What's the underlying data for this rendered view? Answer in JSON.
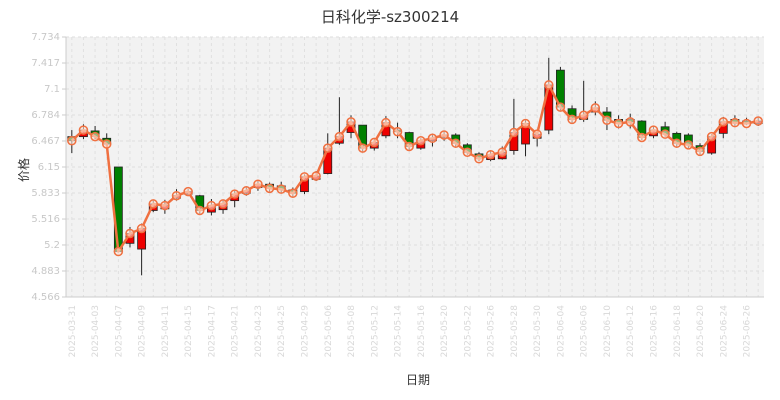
{
  "chart_data": {
    "type": "candlestick",
    "title": "日科化学-sz300214",
    "xlabel": "日期",
    "ylabel": "价格",
    "ylim": [
      4.566,
      7.734
    ],
    "yticks": [
      "4.566",
      "4.883",
      "5.2",
      "5.516",
      "5.833",
      "6.15",
      "6.467",
      "6.784",
      "7.1",
      "7.417",
      "7.734"
    ],
    "grid": true,
    "colors": {
      "up": "#ee0000",
      "down": "#008000",
      "line": "#f07040",
      "marker_fill": "#fde3d6"
    },
    "xtick_labels": [
      "2025-03-31",
      "2025-04-03",
      "2025-04-07",
      "2025-04-09",
      "2025-04-11",
      "2025-04-15",
      "2025-04-17",
      "2025-04-21",
      "2025-04-23",
      "2025-04-25",
      "2025-04-29",
      "2025-05-06",
      "2025-05-08",
      "2025-05-12",
      "2025-05-14",
      "2025-05-16",
      "2025-05-20",
      "2025-05-22",
      "2025-05-26",
      "2025-05-28",
      "2025-05-30",
      "2025-06-04",
      "2025-06-06",
      "2025-06-10",
      "2025-06-12",
      "2025-06-16",
      "2025-06-18",
      "2025-06-20",
      "2025-06-24",
      "2025-06-26"
    ],
    "candles": [
      {
        "o": 6.52,
        "c": 6.47,
        "h": 6.6,
        "l": 6.32
      },
      {
        "o": 6.52,
        "c": 6.6,
        "h": 6.67,
        "l": 6.49
      },
      {
        "o": 6.59,
        "c": 6.52,
        "h": 6.65,
        "l": 6.49
      },
      {
        "o": 6.5,
        "c": 6.43,
        "h": 6.56,
        "l": 6.4
      },
      {
        "o": 6.15,
        "c": 5.12,
        "h": 6.15,
        "l": 5.12
      },
      {
        "o": 5.22,
        "c": 5.34,
        "h": 5.42,
        "l": 5.17
      },
      {
        "o": 5.15,
        "c": 5.4,
        "h": 5.46,
        "l": 4.83
      },
      {
        "o": 5.62,
        "c": 5.7,
        "h": 5.74,
        "l": 5.6
      },
      {
        "o": 5.64,
        "c": 5.68,
        "h": 5.75,
        "l": 5.58
      },
      {
        "o": 5.77,
        "c": 5.8,
        "h": 5.88,
        "l": 5.74
      },
      {
        "o": 5.82,
        "c": 5.85,
        "h": 5.88,
        "l": 5.8
      },
      {
        "o": 5.8,
        "c": 5.62,
        "h": 5.81,
        "l": 5.58
      },
      {
        "o": 5.6,
        "c": 5.68,
        "h": 5.76,
        "l": 5.56
      },
      {
        "o": 5.63,
        "c": 5.7,
        "h": 5.74,
        "l": 5.58
      },
      {
        "o": 5.74,
        "c": 5.82,
        "h": 5.86,
        "l": 5.66
      },
      {
        "o": 5.83,
        "c": 5.86,
        "h": 5.9,
        "l": 5.8
      },
      {
        "o": 5.9,
        "c": 5.94,
        "h": 5.99,
        "l": 5.86
      },
      {
        "o": 5.94,
        "c": 5.89,
        "h": 5.96,
        "l": 5.85
      },
      {
        "o": 5.92,
        "c": 5.88,
        "h": 5.97,
        "l": 5.84
      },
      {
        "o": 5.87,
        "c": 5.83,
        "h": 5.9,
        "l": 5.78
      },
      {
        "o": 5.85,
        "c": 6.03,
        "h": 6.06,
        "l": 5.82
      },
      {
        "o": 6.0,
        "c": 6.04,
        "h": 6.1,
        "l": 5.98
      },
      {
        "o": 6.07,
        "c": 6.38,
        "h": 6.56,
        "l": 6.06
      },
      {
        "o": 6.44,
        "c": 6.52,
        "h": 7.0,
        "l": 6.42
      },
      {
        "o": 6.57,
        "c": 6.7,
        "h": 6.78,
        "l": 6.5
      },
      {
        "o": 6.66,
        "c": 6.38,
        "h": 6.66,
        "l": 6.34
      },
      {
        "o": 6.38,
        "c": 6.45,
        "h": 6.5,
        "l": 6.35
      },
      {
        "o": 6.53,
        "c": 6.69,
        "h": 6.77,
        "l": 6.5
      },
      {
        "o": 6.6,
        "c": 6.58,
        "h": 6.69,
        "l": 6.5
      },
      {
        "o": 6.57,
        "c": 6.4,
        "h": 6.58,
        "l": 6.36
      },
      {
        "o": 6.38,
        "c": 6.47,
        "h": 6.5,
        "l": 6.36
      },
      {
        "o": 6.47,
        "c": 6.5,
        "h": 6.55,
        "l": 6.4
      },
      {
        "o": 6.51,
        "c": 6.54,
        "h": 6.58,
        "l": 6.47
      },
      {
        "o": 6.54,
        "c": 6.44,
        "h": 6.56,
        "l": 6.4
      },
      {
        "o": 6.42,
        "c": 6.33,
        "h": 6.44,
        "l": 6.3
      },
      {
        "o": 6.31,
        "c": 6.25,
        "h": 6.33,
        "l": 6.22
      },
      {
        "o": 6.24,
        "c": 6.3,
        "h": 6.35,
        "l": 6.22
      },
      {
        "o": 6.25,
        "c": 6.33,
        "h": 6.4,
        "l": 6.24
      },
      {
        "o": 6.35,
        "c": 6.57,
        "h": 6.98,
        "l": 6.3
      },
      {
        "o": 6.43,
        "c": 6.68,
        "h": 6.72,
        "l": 6.28
      },
      {
        "o": 6.5,
        "c": 6.55,
        "h": 6.6,
        "l": 6.4
      },
      {
        "o": 6.6,
        "c": 7.15,
        "h": 7.48,
        "l": 6.55
      },
      {
        "o": 7.33,
        "c": 6.88,
        "h": 7.37,
        "l": 6.84
      },
      {
        "o": 6.86,
        "c": 6.73,
        "h": 6.9,
        "l": 6.69
      },
      {
        "o": 6.73,
        "c": 6.78,
        "h": 7.2,
        "l": 6.7
      },
      {
        "o": 6.82,
        "c": 6.87,
        "h": 6.95,
        "l": 6.78
      },
      {
        "o": 6.82,
        "c": 6.72,
        "h": 6.88,
        "l": 6.6
      },
      {
        "o": 6.73,
        "c": 6.68,
        "h": 6.78,
        "l": 6.62
      },
      {
        "o": 6.73,
        "c": 6.7,
        "h": 6.8,
        "l": 6.62
      },
      {
        "o": 6.71,
        "c": 6.51,
        "h": 6.72,
        "l": 6.48
      },
      {
        "o": 6.53,
        "c": 6.6,
        "h": 6.65,
        "l": 6.5
      },
      {
        "o": 6.64,
        "c": 6.55,
        "h": 6.7,
        "l": 6.52
      },
      {
        "o": 6.56,
        "c": 6.44,
        "h": 6.58,
        "l": 6.4
      },
      {
        "o": 6.54,
        "c": 6.42,
        "h": 6.56,
        "l": 6.38
      },
      {
        "o": 6.41,
        "c": 6.34,
        "h": 6.44,
        "l": 6.3
      },
      {
        "o": 6.32,
        "c": 6.52,
        "h": 6.55,
        "l": 6.3
      },
      {
        "o": 6.56,
        "c": 6.7,
        "h": 6.76,
        "l": 6.5
      },
      {
        "o": 6.73,
        "c": 6.69,
        "h": 6.78,
        "l": 6.64
      },
      {
        "o": 6.71,
        "c": 6.68,
        "h": 6.75,
        "l": 6.66
      },
      {
        "o": 6.68,
        "c": 6.71,
        "h": 6.75,
        "l": 6.65
      }
    ]
  }
}
